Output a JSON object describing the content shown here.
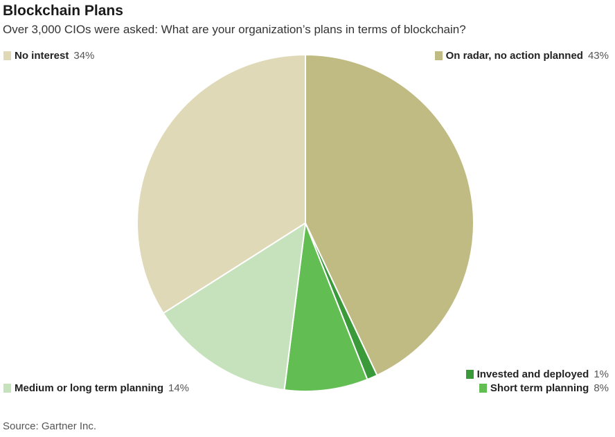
{
  "chart_data": {
    "type": "pie",
    "title": "Blockchain Plans",
    "subtitle": "Over 3,000 CIOs were asked: What are your organization’s plans in terms of blockchain?",
    "source": "Source: Gartner Inc.",
    "slices": [
      {
        "label": "On radar, no action planned",
        "value": 43,
        "value_label": "43%",
        "color": "#c0bb82"
      },
      {
        "label": "Invested and deployed",
        "value": 1,
        "value_label": "1%",
        "color": "#3a9a3a"
      },
      {
        "label": "Short term planning",
        "value": 8,
        "value_label": "8%",
        "color": "#62bd52"
      },
      {
        "label": "Medium or long term planning",
        "value": 14,
        "value_label": "14%",
        "color": "#c6e2bc"
      },
      {
        "label": "No interest",
        "value": 34,
        "value_label": "34%",
        "color": "#dfd9b8"
      }
    ],
    "start": "12 o'clock",
    "direction": "clockwise",
    "legend": "corners"
  }
}
